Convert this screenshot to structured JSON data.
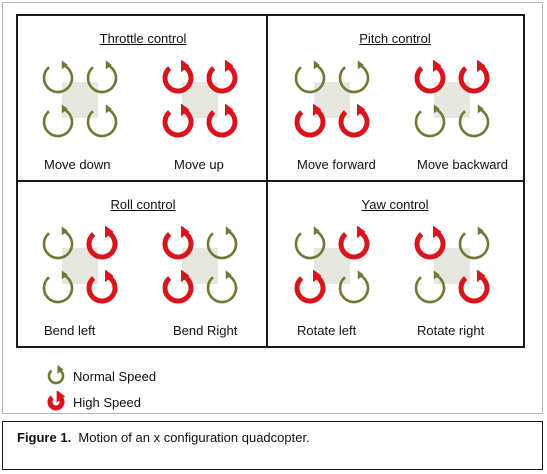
{
  "colors": {
    "normal": "#6b7c32",
    "high": "#d8141c",
    "center": "#e7e6df"
  },
  "panels": [
    {
      "title": "Throttle control",
      "quads": [
        {
          "label": "Move down",
          "rotors": [
            "normal",
            "normal",
            "normal",
            "normal"
          ]
        },
        {
          "label": "Move up",
          "rotors": [
            "high",
            "high",
            "high",
            "high"
          ]
        }
      ]
    },
    {
      "title": "Pitch control",
      "quads": [
        {
          "label": "Move forward",
          "rotors": [
            "normal",
            "normal",
            "high",
            "high"
          ]
        },
        {
          "label": "Move backward",
          "rotors": [
            "high",
            "high",
            "normal",
            "normal"
          ]
        }
      ]
    },
    {
      "title": "Roll control",
      "quads": [
        {
          "label": "Bend left",
          "rotors": [
            "normal",
            "high",
            "normal",
            "high"
          ]
        },
        {
          "label": "Bend Right",
          "rotors": [
            "high",
            "normal",
            "high",
            "normal"
          ]
        }
      ]
    },
    {
      "title": "Yaw control",
      "quads": [
        {
          "label": "Rotate left",
          "rotors": [
            "normal",
            "high",
            "high",
            "normal"
          ]
        },
        {
          "label": "Rotate right",
          "rotors": [
            "high",
            "normal",
            "normal",
            "high"
          ]
        }
      ]
    }
  ],
  "legend": {
    "normal_label": "Normal Speed",
    "high_label": "High Speed"
  },
  "figure": {
    "label": "Figure 1.",
    "caption": "Motion of an x configuration quadcopter."
  }
}
